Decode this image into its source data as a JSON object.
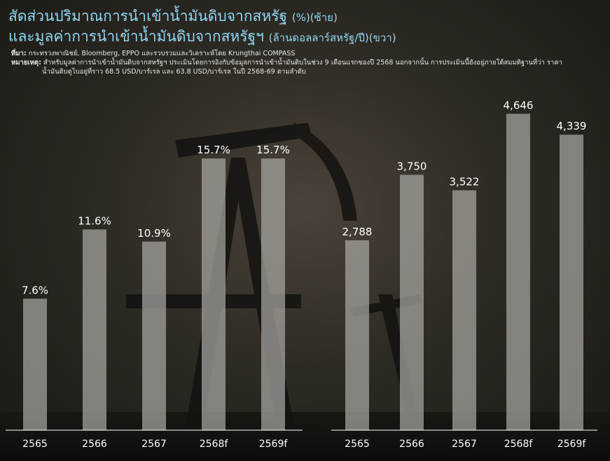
{
  "title": {
    "line1": "สัดส่วนปริมาณการนำเข้าน้ำมันดิบจากสหรัฐ",
    "line1_unit": "(%)(ซ้าย)",
    "line2": "และมูลค่าการนำเข้าน้ำมันดิบจากสหรัฐฯ",
    "line2_unit": "(ล้านดอลลาร์สหรัฐ/ปี)(ขวา)"
  },
  "notes": {
    "source_label": "ที่มา:",
    "source": "กระทรวงพาณิชย์, Bloomberg, EPPO และรวบรวมและวิเคราะห์โดย Krungthai COMPASS",
    "remark_label": "หมายเหตุ:",
    "remark_line1": "สำหรับมูลค่าการนำเข้าน้ำมันดิบจากสหรัฐฯ ประเมินโดยการอิงกับข้อมูลการนำเข้าน้ำมันดิบในช่วง 9 เดือนแรกของปี 2568 นอกจากนั้น การประเมินนี้ยังอยู่ภายใต้สมมติฐานที่ว่า ราคา",
    "remark_line2": "น้ำมันดิบดูไบอยู่ที่ราว 68.5 USD/บาร์เรล และ 63.8 USD/บาร์เรล ในปี 2568-69 ตามลำดับ"
  },
  "colors": {
    "title": "#8fd8f3",
    "bar": "#a9a6a2",
    "axis": "#ffffff"
  },
  "chart_data": [
    {
      "type": "bar",
      "categories": [
        "2565",
        "2566",
        "2567",
        "2568f",
        "2569f"
      ],
      "values": [
        7.6,
        11.6,
        10.9,
        15.7,
        15.7
      ],
      "labels": [
        "7.6%",
        "11.6%",
        "10.9%",
        "15.7%",
        "15.7%"
      ],
      "unit": "%",
      "ylim": [
        0,
        16
      ],
      "grid": false
    },
    {
      "type": "bar",
      "categories": [
        "2565",
        "2566",
        "2567",
        "2568f",
        "2569f"
      ],
      "values": [
        2788,
        3750,
        3522,
        4646,
        4339
      ],
      "labels": [
        "2,788",
        "3,750",
        "3,522",
        "4,646",
        "4,339"
      ],
      "unit": "ล้านดอลลาร์สหรัฐ/ปี",
      "ylim": [
        0,
        4700
      ],
      "grid": false
    }
  ]
}
